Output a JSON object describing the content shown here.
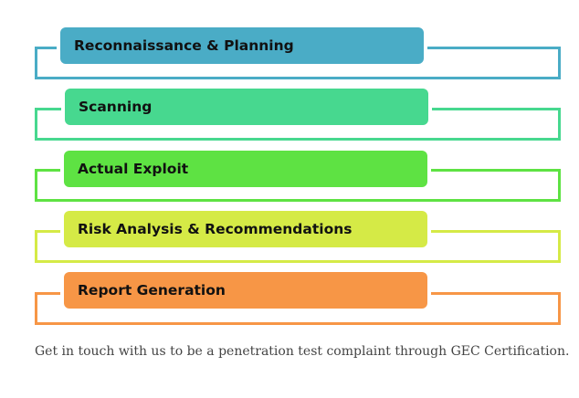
{
  "steps": [
    {
      "label": "Reconnaissance & Planning",
      "color": "#4aacc6"
    },
    {
      "label": "Scanning",
      "color": "#47d88f"
    },
    {
      "label": "Actual Exploit",
      "color": "#5ee243"
    },
    {
      "label": "Risk Analysis & Recommendations",
      "color": "#d5ea46"
    },
    {
      "label": "Report Generation",
      "color": "#f79646"
    }
  ],
  "footer": {
    "text": "Get in touch with us to be a penetration test complaint through GEC Certification."
  }
}
